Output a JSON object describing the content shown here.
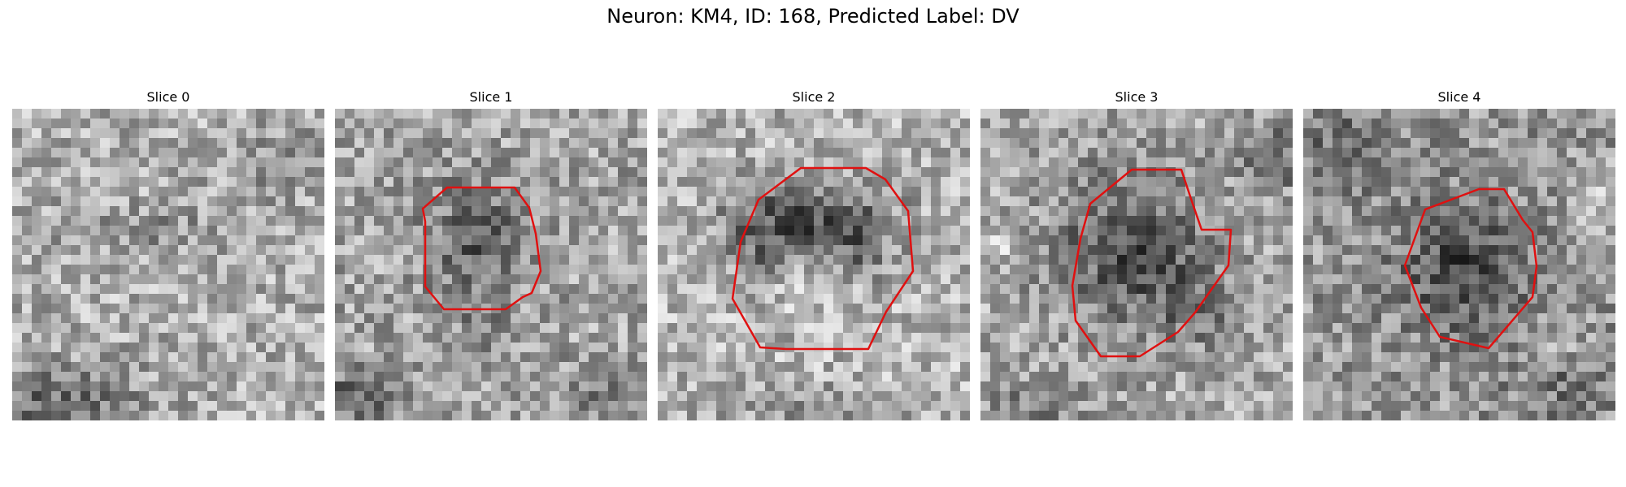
{
  "figure": {
    "title": "Neuron: KM4, ID: 168, Predicted Label: DV",
    "contour_color": "#e01010"
  },
  "panels": [
    {
      "title": "Slice 0",
      "has_contour": false
    },
    {
      "title": "Slice 1",
      "has_contour": true
    },
    {
      "title": "Slice 2",
      "has_contour": true
    },
    {
      "title": "Slice 3",
      "has_contour": true
    },
    {
      "title": "Slice 4",
      "has_contour": true
    }
  ]
}
